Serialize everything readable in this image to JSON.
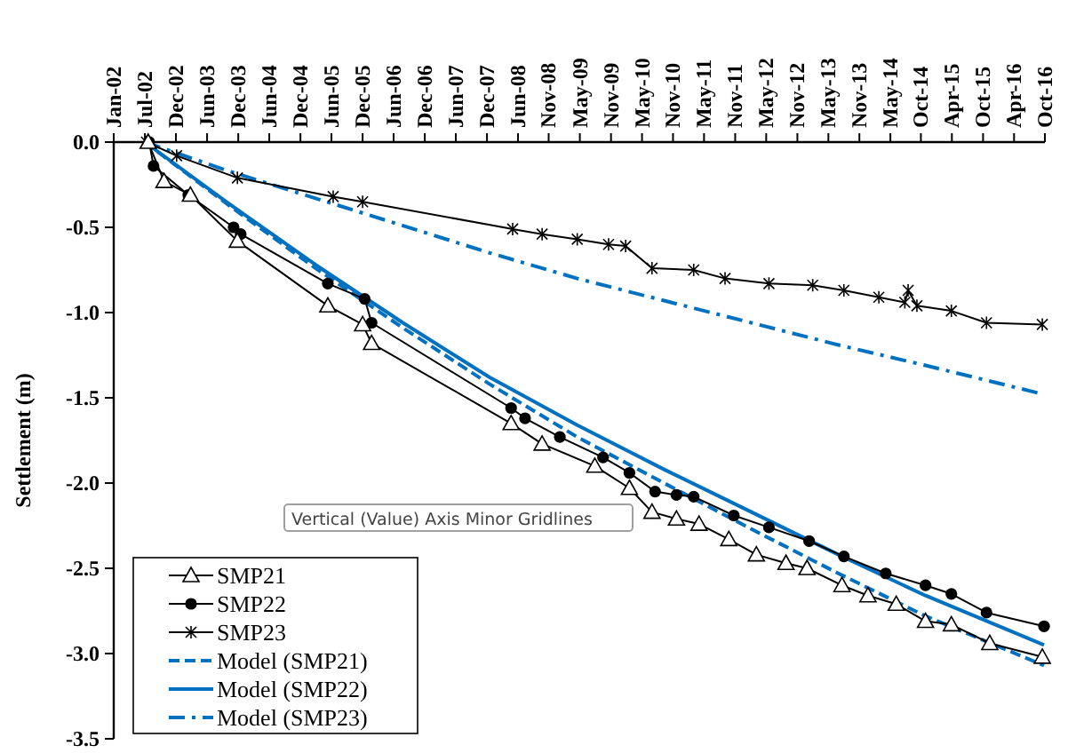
{
  "chart_data": {
    "type": "line",
    "ylabel": "Settlement (m)",
    "xlim": [
      "2002-01-01",
      "2016-10-20"
    ],
    "xticks": [
      {
        "value": "2002-01-01",
        "label": "Jan-02"
      },
      {
        "value": "2002-07-01",
        "label": "Jul-02"
      },
      {
        "value": "2002-12-28",
        "label": "Dec-02"
      },
      {
        "value": "2003-06-27",
        "label": "Jun-03"
      },
      {
        "value": "2003-12-25",
        "label": "Dec-03"
      },
      {
        "value": "2004-06-22",
        "label": "Jun-04"
      },
      {
        "value": "2004-12-20",
        "label": "Dec-04"
      },
      {
        "value": "2005-06-18",
        "label": "Jun-05"
      },
      {
        "value": "2005-12-16",
        "label": "Dec-05"
      },
      {
        "value": "2006-06-14",
        "label": "Jun-06"
      },
      {
        "value": "2006-12-12",
        "label": "Dec-06"
      },
      {
        "value": "2007-06-10",
        "label": "Jun-07"
      },
      {
        "value": "2007-12-08",
        "label": "Dec-07"
      },
      {
        "value": "2008-06-05",
        "label": "Jun-08"
      },
      {
        "value": "2008-11-30",
        "label": "Nov-08"
      },
      {
        "value": "2009-05-30",
        "label": "May-09"
      },
      {
        "value": "2009-11-27",
        "label": "Nov-09"
      },
      {
        "value": "2010-05-26",
        "label": "May-10"
      },
      {
        "value": "2010-11-22",
        "label": "Nov-10"
      },
      {
        "value": "2011-05-21",
        "label": "May-11"
      },
      {
        "value": "2011-11-18",
        "label": "Nov-11"
      },
      {
        "value": "2012-05-16",
        "label": "May-12"
      },
      {
        "value": "2012-11-13",
        "label": "Nov-12"
      },
      {
        "value": "2013-05-12",
        "label": "May-13"
      },
      {
        "value": "2013-11-08",
        "label": "Nov-13"
      },
      {
        "value": "2014-05-07",
        "label": "May-14"
      },
      {
        "value": "2014-10-31",
        "label": "Oct-14"
      },
      {
        "value": "2015-04-29",
        "label": "Apr-15"
      },
      {
        "value": "2015-10-27",
        "label": "Oct-15"
      },
      {
        "value": "2016-04-24",
        "label": "Apr-16"
      },
      {
        "value": "2016-10-20",
        "label": "Oct-16"
      }
    ],
    "ylim": [
      -3.5,
      0
    ],
    "yticks": [
      {
        "value": 0,
        "label": "0.0"
      },
      -0.5,
      {
        "value": -1,
        "label": "-1.0"
      },
      -1.5,
      {
        "value": -2,
        "label": "-2.0"
      },
      -2.5,
      {
        "value": -3,
        "label": "-3.0"
      },
      -3.5
    ],
    "grid": false,
    "legend": "bottom left",
    "annotations": [
      "Vertical (Value) Axis Minor Gridlines"
    ],
    "series": [
      {
        "name": "SMP21",
        "color": "#000000",
        "marker": "triangle",
        "line_style": "solid",
        "x": [
          "2002-07-20",
          "2002-10-20",
          "2003-03-22",
          "2003-12-20",
          "2005-05-28",
          "2005-12-16",
          "2006-02-06",
          "2008-04-26",
          "2008-10-23",
          "2009-08-25",
          "2010-03-14",
          "2010-07-23",
          "2010-12-12",
          "2011-04-22",
          "2011-10-12",
          "2012-03-20",
          "2012-09-08",
          "2013-01-08",
          "2013-07-30",
          "2013-12-28",
          "2014-06-10",
          "2014-11-27",
          "2015-04-26",
          "2015-12-05",
          "2016-10-05"
        ],
        "values": [
          0,
          -0.23,
          -0.31,
          -0.58,
          -0.96,
          -1.07,
          -1.18,
          -1.65,
          -1.77,
          -1.9,
          -2.03,
          -2.17,
          -2.21,
          -2.24,
          -2.33,
          -2.42,
          -2.47,
          -2.5,
          -2.6,
          -2.66,
          -2.71,
          -2.81,
          -2.83,
          -2.94,
          -3.02
        ]
      },
      {
        "name": "SMP22",
        "color": "#000000",
        "marker": "circle",
        "line_style": "solid",
        "x": [
          "2002-07-26",
          "2002-08-20",
          "2003-03-10",
          "2003-11-28",
          "2004-01-08",
          "2005-05-28",
          "2005-12-28",
          "2006-02-06",
          "2008-04-26",
          "2008-07-16",
          "2009-02-03",
          "2009-10-12",
          "2010-03-14",
          "2010-08-10",
          "2010-12-12",
          "2011-03-22",
          "2011-11-10",
          "2012-06-01",
          "2013-01-20",
          "2013-08-10",
          "2014-04-10",
          "2014-11-27",
          "2015-04-26",
          "2015-11-16",
          "2016-10-15"
        ],
        "values": [
          0,
          -0.14,
          -0.31,
          -0.5,
          -0.54,
          -0.83,
          -0.92,
          -1.06,
          -1.56,
          -1.62,
          -1.73,
          -1.85,
          -1.94,
          -2.05,
          -2.07,
          -2.08,
          -2.19,
          -2.26,
          -2.34,
          -2.43,
          -2.53,
          -2.6,
          -2.65,
          -2.76,
          -2.84
        ]
      },
      {
        "name": "SMP23",
        "color": "#000000",
        "marker": "cross",
        "line_style": "solid",
        "x": [
          "2002-07-10",
          "2003-01-01",
          "2003-12-20",
          "2005-06-28",
          "2005-12-16",
          "2008-05-05",
          "2008-10-23",
          "2009-05-15",
          "2009-11-13",
          "2010-02-20",
          "2010-07-23",
          "2011-03-22",
          "2011-09-20",
          "2012-06-01",
          "2013-02-10",
          "2013-08-10",
          "2014-03-01",
          "2014-07-30",
          "2014-08-18",
          "2014-10-08",
          "2015-04-26",
          "2015-11-16",
          "2016-10-05"
        ],
        "values": [
          0,
          -0.08,
          -0.21,
          -0.32,
          -0.35,
          -0.51,
          -0.54,
          -0.57,
          -0.6,
          -0.61,
          -0.74,
          -0.75,
          -0.8,
          -0.83,
          -0.84,
          -0.87,
          -0.91,
          -0.94,
          -0.87,
          -0.96,
          -0.99,
          -1.06,
          -1.07
        ]
      },
      {
        "name": "Model (SMP21)",
        "color": "#0070c0",
        "marker": "none",
        "line_style": "dashed",
        "x": [
          "2002-07-01",
          "2003-10-30",
          "2005-03-18",
          "2006-08-07",
          "2007-12-24",
          "2009-05-15",
          "2010-10-01",
          "2012-02-20",
          "2013-07-09",
          "2014-11-27",
          "2016-10-15"
        ],
        "values": [
          0,
          -0.37,
          -0.74,
          -1.09,
          -1.42,
          -1.73,
          -2.0,
          -2.27,
          -2.53,
          -2.78,
          -3.07
        ]
      },
      {
        "name": "Model (SMP22)",
        "color": "#0070c0",
        "marker": "none",
        "line_style": "solid",
        "x": [
          "2002-07-01",
          "2003-10-30",
          "2005-03-18",
          "2006-08-07",
          "2007-12-24",
          "2009-05-15",
          "2010-10-01",
          "2012-02-20",
          "2013-07-09",
          "2014-11-27",
          "2016-10-15"
        ],
        "values": [
          0,
          -0.36,
          -0.72,
          -1.06,
          -1.38,
          -1.66,
          -1.92,
          -2.17,
          -2.42,
          -2.66,
          -2.95
        ]
      },
      {
        "name": "Model (SMP23)",
        "color": "#0070c0",
        "marker": "none",
        "line_style": "dashdot",
        "x": [
          "2002-07-01",
          "2003-10-30",
          "2005-03-18",
          "2006-08-07",
          "2007-12-24",
          "2009-05-15",
          "2010-10-01",
          "2012-02-20",
          "2013-07-09",
          "2014-11-27",
          "2016-10-15"
        ],
        "values": [
          0,
          -0.17,
          -0.33,
          -0.49,
          -0.65,
          -0.8,
          -0.93,
          -1.06,
          -1.19,
          -1.31,
          -1.48
        ]
      }
    ]
  }
}
